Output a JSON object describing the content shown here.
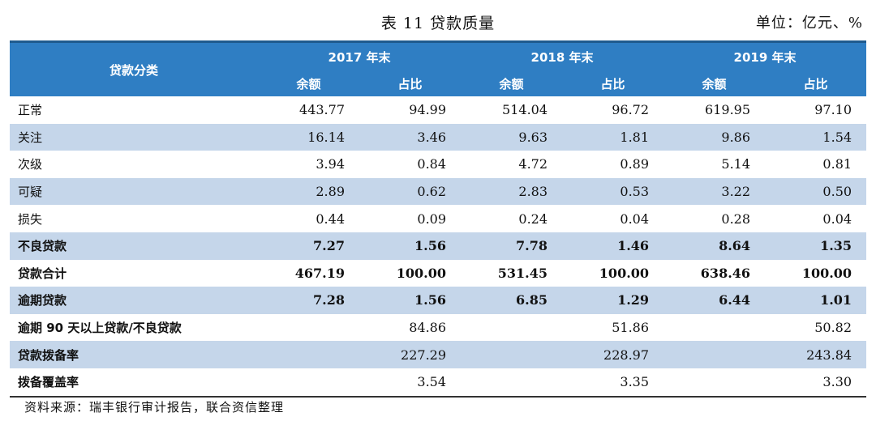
{
  "title": "表 11   贷款质量",
  "unit": "单位：亿元、%",
  "header": {
    "category": "贷款分类",
    "years": [
      "2017 年末",
      "2018 年末",
      "2019 年末"
    ],
    "sub": [
      "余额",
      "占比",
      "余额",
      "占比",
      "余额",
      "占比"
    ]
  },
  "rows": [
    {
      "label": "正常",
      "cells": [
        "443.77",
        "94.99",
        "514.04",
        "96.72",
        "619.95",
        "97.10"
      ]
    },
    {
      "label": "关注",
      "cells": [
        "16.14",
        "3.46",
        "9.63",
        "1.81",
        "9.86",
        "1.54"
      ]
    },
    {
      "label": "次级",
      "cells": [
        "3.94",
        "0.84",
        "4.72",
        "0.89",
        "5.14",
        "0.81"
      ]
    },
    {
      "label": "可疑",
      "cells": [
        "2.89",
        "0.62",
        "2.83",
        "0.53",
        "3.22",
        "0.50"
      ]
    },
    {
      "label": "损失",
      "cells": [
        "0.44",
        "0.09",
        "0.24",
        "0.04",
        "0.28",
        "0.04"
      ]
    },
    {
      "label": "不良贷款",
      "cells": [
        "7.27",
        "1.56",
        "7.78",
        "1.46",
        "8.64",
        "1.35"
      ]
    },
    {
      "label": "贷款合计",
      "cells": [
        "467.19",
        "100.00",
        "531.45",
        "100.00",
        "638.46",
        "100.00"
      ]
    },
    {
      "label": "逾期贷款",
      "cells": [
        "7.28",
        "1.56",
        "6.85",
        "1.29",
        "6.44",
        "1.01"
      ]
    },
    {
      "label": "逾期 90 天以上贷款/不良贷款",
      "cells": [
        "",
        "84.86",
        "",
        "51.86",
        "",
        "50.82"
      ]
    },
    {
      "label": "贷款拨备率",
      "cells": [
        "",
        "227.29",
        "",
        "228.97",
        "",
        "243.84"
      ]
    },
    {
      "label": "拨备覆盖率",
      "cells": [
        "",
        "3.54",
        "",
        "3.35",
        "",
        "3.30"
      ]
    }
  ],
  "source": "资料来源：瑞丰银行审计报告，联合资信整理"
}
